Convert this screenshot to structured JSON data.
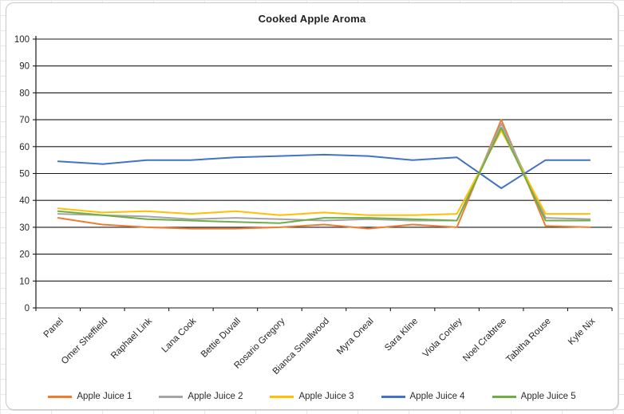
{
  "chart_data": {
    "type": "line",
    "title": "Cooked Apple Aroma",
    "categories": [
      "Panel",
      "Omer Sheffield",
      "Raphael Link",
      "Lana Cook",
      "Bettie Duvall",
      "Rosario Gregory",
      "Bianca Smallwood",
      "Myra Oneal",
      "Sara Kline",
      "Viola Conley",
      "Noel Crabtree",
      "Tabitha Rouse",
      "Kyle Nix"
    ],
    "series": [
      {
        "name": "Apple Juice 1",
        "color": "#ED7D31",
        "values": [
          33.5,
          31,
          30,
          29.5,
          29.5,
          30,
          31,
          29.5,
          31,
          30,
          70,
          30.5,
          30
        ]
      },
      {
        "name": "Apple Juice 2",
        "color": "#A5A5A5",
        "values": [
          35,
          34.5,
          34,
          33,
          33.5,
          33,
          32.5,
          33,
          32.5,
          32.5,
          68.5,
          33.5,
          33
        ]
      },
      {
        "name": "Apple Juice 3",
        "color": "#FFC000",
        "values": [
          37,
          35.5,
          36,
          35,
          36,
          34.5,
          35.5,
          34.5,
          34.5,
          35,
          66,
          35,
          35
        ]
      },
      {
        "name": "Apple Juice 4",
        "color": "#4472C4",
        "values": [
          54.5,
          53.5,
          55,
          55,
          56,
          56.5,
          57,
          56.5,
          55,
          56,
          44.5,
          55,
          55
        ]
      },
      {
        "name": "Apple Juice 5",
        "color": "#70AD47",
        "values": [
          36,
          34.5,
          33,
          32.5,
          32,
          31.5,
          33.5,
          33.5,
          33,
          32.5,
          67,
          32.5,
          32.5
        ]
      }
    ],
    "xlabel": "",
    "ylabel": "",
    "ylim": [
      0,
      100
    ],
    "yticks": [
      0,
      10,
      20,
      30,
      40,
      50,
      60,
      70,
      80,
      90,
      100
    ],
    "grid": "horizontal",
    "grid_color": "#1a1a1a",
    "axis_text_color": "#262626",
    "legend_position": "bottom"
  }
}
